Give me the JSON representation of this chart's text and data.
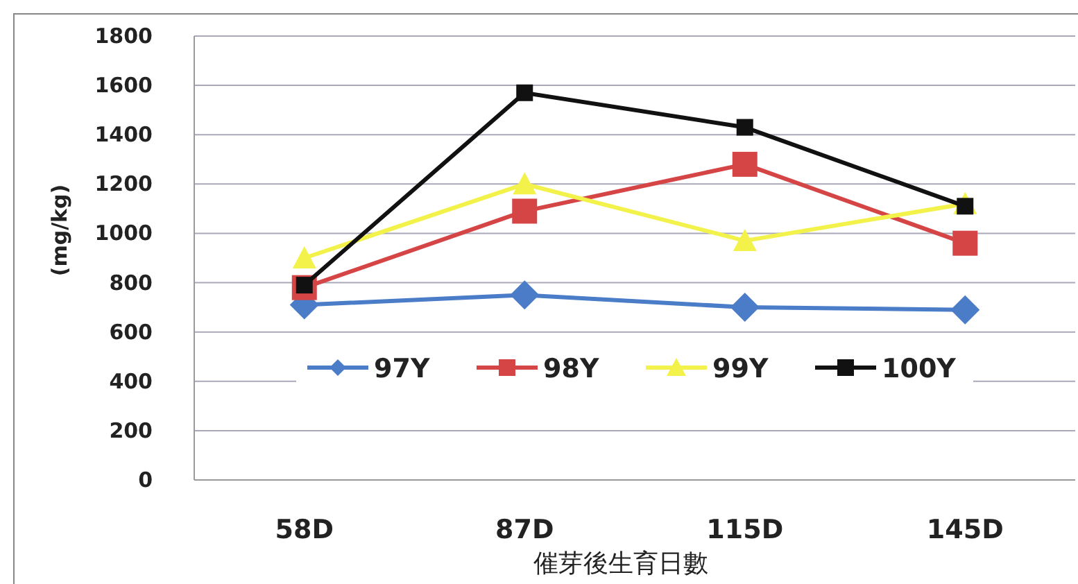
{
  "chart_data": {
    "type": "line",
    "ylabel": "(mg/kg)",
    "xlabel": "催芽後生育日數",
    "categories": [
      "58D",
      "87D",
      "115D",
      "145D"
    ],
    "series": [
      {
        "name": "97Y",
        "color": "#4a7cc8",
        "marker": "diamond",
        "values": [
          710,
          750,
          700,
          690
        ]
      },
      {
        "name": "98Y",
        "color": "#d64545",
        "marker": "square",
        "values": [
          780,
          1090,
          1280,
          960
        ]
      },
      {
        "name": "99Y",
        "color": "#f2f24a",
        "marker": "triangle",
        "values": [
          900,
          1200,
          970,
          1120
        ]
      },
      {
        "name": "100Y",
        "color": "#111111",
        "marker": "square",
        "values": [
          790,
          1570,
          1430,
          1110
        ]
      }
    ],
    "ylim": [
      0,
      1800
    ],
    "yticks": [
      0,
      200,
      400,
      600,
      800,
      1000,
      1200,
      1400,
      1600,
      1800
    ],
    "grid": "y",
    "legend": "center"
  }
}
